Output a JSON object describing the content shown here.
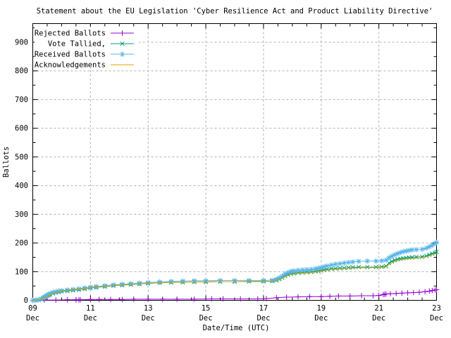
{
  "window": {
    "background": "#ffffff"
  },
  "colors": {
    "border": "#000000",
    "grid": "#b0b0b0",
    "rejected": "#9400d3",
    "tallied": "#009e73",
    "received": "#56b4e9",
    "acknowledgements": "#e69f00"
  },
  "chart_data": {
    "type": "line",
    "title": "Statement about the EU Legislation 'Cyber Resilience Act and Product Liability Directive'",
    "xlabel": "Date/Time (UTC)",
    "ylabel": "Ballots",
    "grid": "on",
    "legend_position": "top-left-inside",
    "x_axis": {
      "lim": [
        9,
        23
      ],
      "major_days": [
        9,
        11,
        13,
        15,
        17,
        19,
        21,
        23
      ],
      "tick_labels": [
        [
          "09",
          "Dec"
        ],
        [
          "11",
          "Dec"
        ],
        [
          "13",
          "Dec"
        ],
        [
          "15",
          "Dec"
        ],
        [
          "17",
          "Dec"
        ],
        [
          "19",
          "Dec"
        ],
        [
          "21",
          "Dec"
        ],
        [
          "23",
          "Dec"
        ]
      ],
      "minor_step_days": 0.5
    },
    "y_axis": {
      "lim": [
        0,
        965
      ],
      "majors": [
        0,
        100,
        200,
        300,
        400,
        500,
        600,
        700,
        800,
        900
      ],
      "minor_step": 50
    },
    "series": [
      {
        "name": "Rejected Ballots",
        "slug": "rejected-ballots",
        "color": "#9400d3",
        "marker": "plus",
        "points": [
          [
            9.0,
            0
          ],
          [
            9.4,
            1
          ],
          [
            9.8,
            1
          ],
          [
            10.2,
            2
          ],
          [
            10.5,
            2
          ],
          [
            10.6,
            2
          ],
          [
            10.65,
            2
          ],
          [
            11.0,
            3
          ],
          [
            11.3,
            3
          ],
          [
            11.7,
            3
          ],
          [
            12.1,
            3
          ],
          [
            12.5,
            4
          ],
          [
            13.0,
            4
          ],
          [
            13.5,
            4
          ],
          [
            14.0,
            4
          ],
          [
            14.6,
            4
          ],
          [
            15.2,
            5
          ],
          [
            15.6,
            5
          ],
          [
            16.2,
            5
          ],
          [
            16.8,
            5
          ],
          [
            17.1,
            6
          ],
          [
            17.45,
            9
          ],
          [
            17.8,
            11
          ],
          [
            18.2,
            12
          ],
          [
            18.6,
            13
          ],
          [
            19.0,
            13
          ],
          [
            19.3,
            14
          ],
          [
            19.6,
            15
          ],
          [
            20.0,
            15
          ],
          [
            20.4,
            16
          ],
          [
            20.8,
            16
          ],
          [
            21.0,
            17
          ],
          [
            21.15,
            20
          ],
          [
            21.2,
            21
          ],
          [
            21.25,
            22
          ],
          [
            21.4,
            23
          ],
          [
            21.6,
            24
          ],
          [
            21.8,
            25
          ],
          [
            22.0,
            26
          ],
          [
            22.2,
            27
          ],
          [
            22.4,
            28
          ],
          [
            22.6,
            30
          ],
          [
            22.75,
            32
          ],
          [
            22.85,
            34
          ],
          [
            22.95,
            36
          ],
          [
            23.0,
            37
          ]
        ]
      },
      {
        "name": "Vote Tallied,",
        "slug": "vote-tallied",
        "color": "#009e73",
        "marker": "cross",
        "points": [
          [
            9.0,
            0
          ],
          [
            9.1,
            0
          ],
          [
            9.2,
            1
          ],
          [
            9.3,
            4
          ],
          [
            9.35,
            6
          ],
          [
            9.4,
            9
          ],
          [
            9.45,
            12
          ],
          [
            9.5,
            15
          ],
          [
            9.55,
            18
          ],
          [
            9.6,
            20
          ],
          [
            9.7,
            24
          ],
          [
            9.8,
            27
          ],
          [
            9.9,
            29
          ],
          [
            10.0,
            31
          ],
          [
            10.2,
            33
          ],
          [
            10.4,
            35
          ],
          [
            10.6,
            37
          ],
          [
            10.8,
            40
          ],
          [
            11.0,
            43
          ],
          [
            11.2,
            45
          ],
          [
            11.5,
            48
          ],
          [
            11.8,
            51
          ],
          [
            12.1,
            53
          ],
          [
            12.4,
            55
          ],
          [
            12.7,
            57
          ],
          [
            13.0,
            59
          ],
          [
            13.4,
            61
          ],
          [
            13.8,
            62
          ],
          [
            14.2,
            63
          ],
          [
            14.6,
            64
          ],
          [
            15.0,
            64
          ],
          [
            15.5,
            65
          ],
          [
            16.0,
            65
          ],
          [
            16.5,
            66
          ],
          [
            17.0,
            66
          ],
          [
            17.3,
            67
          ],
          [
            17.45,
            70
          ],
          [
            17.55,
            74
          ],
          [
            17.65,
            79
          ],
          [
            17.75,
            85
          ],
          [
            17.85,
            89
          ],
          [
            17.95,
            92
          ],
          [
            18.05,
            94
          ],
          [
            18.2,
            96
          ],
          [
            18.35,
            97
          ],
          [
            18.5,
            98
          ],
          [
            18.65,
            99
          ],
          [
            18.8,
            101
          ],
          [
            18.9,
            102
          ],
          [
            19.0,
            104
          ],
          [
            19.1,
            106
          ],
          [
            19.2,
            108
          ],
          [
            19.35,
            110
          ],
          [
            19.5,
            111
          ],
          [
            19.65,
            112
          ],
          [
            19.8,
            113
          ],
          [
            19.95,
            114
          ],
          [
            20.1,
            115
          ],
          [
            20.3,
            116
          ],
          [
            20.6,
            116
          ],
          [
            20.9,
            116
          ],
          [
            21.1,
            117
          ],
          [
            21.25,
            119
          ],
          [
            21.35,
            130
          ],
          [
            21.45,
            136
          ],
          [
            21.55,
            140
          ],
          [
            21.65,
            143
          ],
          [
            21.75,
            145
          ],
          [
            21.85,
            147
          ],
          [
            21.95,
            148
          ],
          [
            22.05,
            149
          ],
          [
            22.15,
            150
          ],
          [
            22.3,
            151
          ],
          [
            22.5,
            152
          ],
          [
            22.65,
            155
          ],
          [
            22.75,
            159
          ],
          [
            22.85,
            163
          ],
          [
            22.95,
            166
          ],
          [
            23.0,
            169
          ]
        ]
      },
      {
        "name": "Received Ballots",
        "slug": "received-ballots",
        "color": "#56b4e9",
        "marker": "asterisk",
        "points": [
          [
            9.0,
            0
          ],
          [
            9.1,
            1
          ],
          [
            9.2,
            2
          ],
          [
            9.3,
            5
          ],
          [
            9.35,
            8
          ],
          [
            9.4,
            12
          ],
          [
            9.45,
            15
          ],
          [
            9.5,
            18
          ],
          [
            9.55,
            21
          ],
          [
            9.6,
            24
          ],
          [
            9.7,
            28
          ],
          [
            9.8,
            30
          ],
          [
            9.9,
            32
          ],
          [
            10.0,
            34
          ],
          [
            10.2,
            36
          ],
          [
            10.4,
            38
          ],
          [
            10.6,
            40
          ],
          [
            10.8,
            43
          ],
          [
            11.0,
            46
          ],
          [
            11.2,
            48
          ],
          [
            11.5,
            51
          ],
          [
            11.8,
            54
          ],
          [
            12.1,
            56
          ],
          [
            12.4,
            58
          ],
          [
            12.7,
            60
          ],
          [
            13.0,
            62
          ],
          [
            13.4,
            64
          ],
          [
            13.8,
            66
          ],
          [
            14.2,
            67
          ],
          [
            14.6,
            68
          ],
          [
            15.0,
            68
          ],
          [
            15.5,
            69
          ],
          [
            16.0,
            69
          ],
          [
            16.5,
            69
          ],
          [
            17.0,
            69
          ],
          [
            17.3,
            70
          ],
          [
            17.45,
            73
          ],
          [
            17.55,
            78
          ],
          [
            17.65,
            85
          ],
          [
            17.75,
            92
          ],
          [
            17.85,
            97
          ],
          [
            17.95,
            101
          ],
          [
            18.05,
            103
          ],
          [
            18.2,
            105
          ],
          [
            18.35,
            106
          ],
          [
            18.5,
            107
          ],
          [
            18.65,
            108
          ],
          [
            18.8,
            110
          ],
          [
            18.9,
            112
          ],
          [
            19.0,
            114
          ],
          [
            19.1,
            117
          ],
          [
            19.2,
            120
          ],
          [
            19.35,
            123
          ],
          [
            19.5,
            126
          ],
          [
            19.65,
            128
          ],
          [
            19.8,
            130
          ],
          [
            19.95,
            132
          ],
          [
            20.1,
            134
          ],
          [
            20.3,
            136
          ],
          [
            20.6,
            137
          ],
          [
            20.9,
            137
          ],
          [
            21.1,
            138
          ],
          [
            21.25,
            140
          ],
          [
            21.35,
            148
          ],
          [
            21.45,
            154
          ],
          [
            21.55,
            159
          ],
          [
            21.65,
            163
          ],
          [
            21.75,
            167
          ],
          [
            21.85,
            170
          ],
          [
            21.95,
            172
          ],
          [
            22.05,
            174
          ],
          [
            22.15,
            176
          ],
          [
            22.3,
            177
          ],
          [
            22.5,
            178
          ],
          [
            22.65,
            182
          ],
          [
            22.75,
            187
          ],
          [
            22.85,
            192
          ],
          [
            22.95,
            198
          ],
          [
            23.0,
            202
          ]
        ]
      },
      {
        "name": "Acknowledgements",
        "slug": "acknowledgements",
        "color": "#e69f00",
        "marker": "none",
        "points": [
          [
            9.0,
            0
          ],
          [
            9.3,
            3
          ],
          [
            9.45,
            10
          ],
          [
            9.6,
            20
          ],
          [
            9.75,
            26
          ],
          [
            9.9,
            30
          ],
          [
            10.1,
            34
          ],
          [
            10.4,
            37
          ],
          [
            10.7,
            40
          ],
          [
            11.0,
            44
          ],
          [
            11.3,
            47
          ],
          [
            11.6,
            50
          ],
          [
            12.0,
            53
          ],
          [
            12.4,
            56
          ],
          [
            12.8,
            58
          ],
          [
            13.2,
            60
          ],
          [
            13.6,
            62
          ],
          [
            14.0,
            63
          ],
          [
            14.5,
            64
          ],
          [
            15.0,
            64
          ],
          [
            15.5,
            65
          ],
          [
            16.0,
            65
          ],
          [
            16.5,
            65
          ],
          [
            17.0,
            65
          ],
          [
            17.35,
            67
          ],
          [
            17.55,
            72
          ],
          [
            17.75,
            82
          ],
          [
            17.95,
            90
          ],
          [
            18.2,
            94
          ],
          [
            18.5,
            96
          ],
          [
            18.8,
            99
          ],
          [
            19.0,
            102
          ],
          [
            19.3,
            107
          ],
          [
            19.6,
            110
          ],
          [
            19.9,
            112
          ],
          [
            20.2,
            113
          ],
          [
            20.6,
            114
          ],
          [
            21.0,
            114
          ],
          [
            21.25,
            117
          ],
          [
            21.4,
            128
          ],
          [
            21.6,
            137
          ],
          [
            21.8,
            142
          ],
          [
            22.0,
            145
          ],
          [
            22.3,
            147
          ],
          [
            22.5,
            148
          ],
          [
            22.7,
            153
          ],
          [
            22.85,
            158
          ],
          [
            23.0,
            164
          ]
        ]
      }
    ]
  }
}
